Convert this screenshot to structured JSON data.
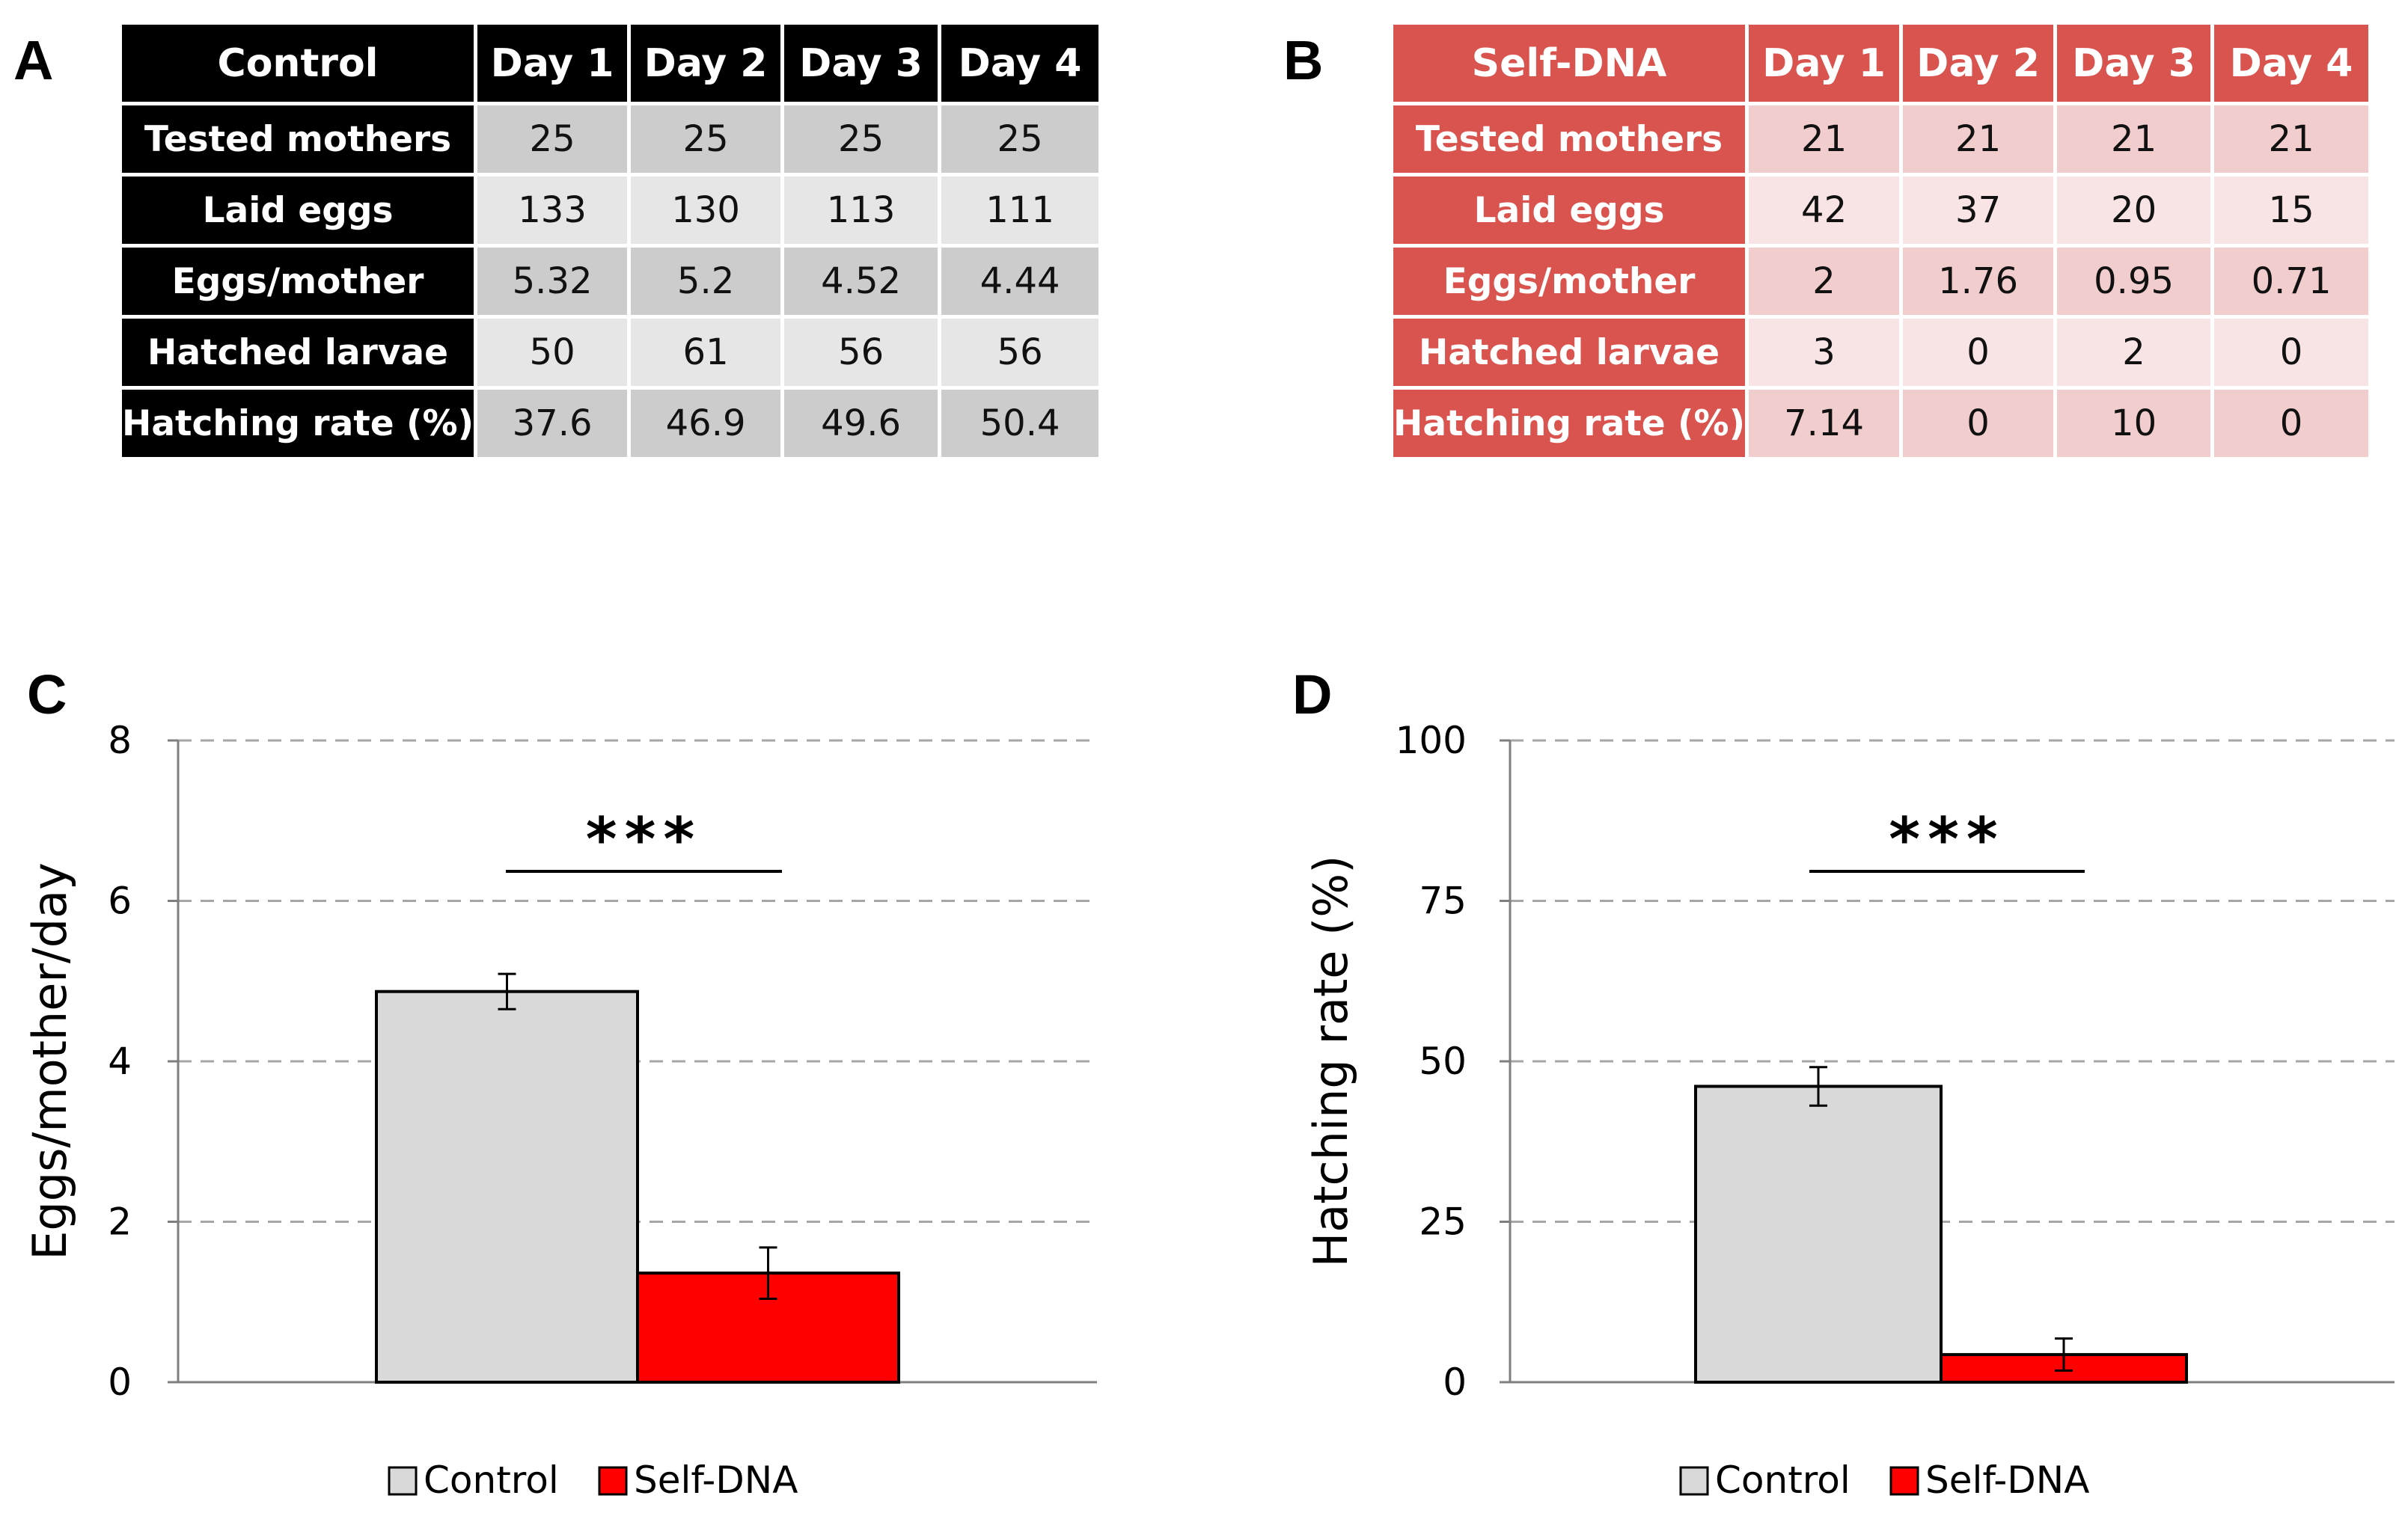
{
  "panels": {
    "a": "A",
    "b": "B",
    "c": "C",
    "d": "D"
  },
  "table_a": {
    "header": [
      "Control",
      "Day 1",
      "Day 2",
      "Day 3",
      "Day 4"
    ],
    "rows": [
      {
        "label": "Tested mothers",
        "values": [
          "25",
          "25",
          "25",
          "25"
        ]
      },
      {
        "label": "Laid eggs",
        "values": [
          "133",
          "130",
          "113",
          "111"
        ]
      },
      {
        "label": "Eggs/mother",
        "values": [
          "5.32",
          "5.2",
          "4.52",
          "4.44"
        ]
      },
      {
        "label": "Hatched larvae",
        "values": [
          "50",
          "61",
          "56",
          "56"
        ]
      },
      {
        "label": "Hatching rate (%)",
        "values": [
          "37.6",
          "46.9",
          "49.6",
          "50.4"
        ]
      }
    ]
  },
  "table_b": {
    "header": [
      "Self-DNA",
      "Day 1",
      "Day 2",
      "Day 3",
      "Day 4"
    ],
    "rows": [
      {
        "label": "Tested mothers",
        "values": [
          "21",
          "21",
          "21",
          "21"
        ]
      },
      {
        "label": "Laid eggs",
        "values": [
          "42",
          "37",
          "20",
          "15"
        ]
      },
      {
        "label": "Eggs/mother",
        "values": [
          "2",
          "1.76",
          "0.95",
          "0.71"
        ]
      },
      {
        "label": "Hatched larvae",
        "values": [
          "3",
          "0",
          "2",
          "0"
        ]
      },
      {
        "label": "Hatching rate (%)",
        "values": [
          "7.14",
          "0",
          "10",
          "0"
        ]
      }
    ]
  },
  "colors": {
    "control": "#d9d9d9",
    "self_dna": "#ff0000",
    "table_b_header": "#d9534f"
  },
  "chart_data": [
    {
      "type": "bar",
      "title": "",
      "ylabel": "Eggs/mother/day",
      "xlabel": "",
      "ylim": [
        0,
        8
      ],
      "yticks": [
        0,
        2,
        4,
        6,
        8
      ],
      "grid": true,
      "series": [
        {
          "name": "Control",
          "value": 4.87,
          "error": 0.22
        },
        {
          "name": "Self-DNA",
          "value": 1.36,
          "error": 0.32
        }
      ],
      "significance": "***",
      "legend": [
        "Control",
        "Self-DNA"
      ],
      "legend_position": "bottom"
    },
    {
      "type": "bar",
      "title": "",
      "ylabel": "Hatching rate (%)",
      "xlabel": "",
      "ylim": [
        0,
        100
      ],
      "yticks": [
        0,
        25,
        50,
        75,
        100
      ],
      "grid": true,
      "series": [
        {
          "name": "Control",
          "value": 46.1,
          "error": 3.0
        },
        {
          "name": "Self-DNA",
          "value": 4.3,
          "error": 2.5
        }
      ],
      "significance": "***",
      "legend": [
        "Control",
        "Self-DNA"
      ],
      "legend_position": "bottom"
    }
  ]
}
